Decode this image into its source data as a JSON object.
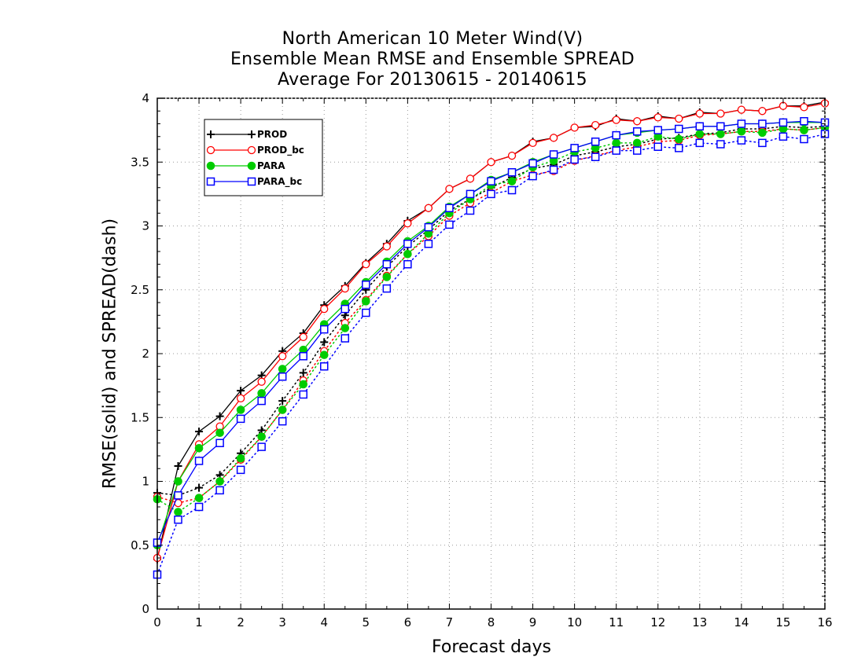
{
  "chart_data": {
    "type": "line",
    "title": [
      "North American 10 Meter Wind(V)",
      "Ensemble Mean RMSE and Ensemble SPREAD",
      "Average For 20130615 - 20140615"
    ],
    "xlabel": "Forecast days",
    "ylabel": "RMSE(solid) and SPREAD(dash)",
    "xlim": [
      0,
      16
    ],
    "ylim": [
      0,
      4
    ],
    "xticks": [
      0,
      1,
      2,
      3,
      4,
      5,
      6,
      7,
      8,
      9,
      10,
      11,
      12,
      13,
      14,
      15,
      16
    ],
    "yticks": [
      0,
      0.5,
      1,
      1.5,
      2,
      2.5,
      3,
      3.5,
      4
    ],
    "ytick_labels": [
      "0",
      "0.5",
      "1",
      "1.5",
      "2",
      "2.5",
      "3",
      "3.5",
      "4"
    ],
    "grid": true,
    "legend_position": "top-left",
    "x": [
      0,
      0.5,
      1,
      1.5,
      2,
      2.5,
      3,
      3.5,
      4,
      4.5,
      5,
      5.5,
      6,
      6.5,
      7,
      7.5,
      8,
      8.5,
      9,
      9.5,
      10,
      10.5,
      11,
      11.5,
      12,
      12.5,
      13,
      13.5,
      14,
      14.5,
      15,
      15.5,
      16
    ],
    "series": [
      {
        "name": "PROD",
        "color": "#000000",
        "marker": "plus",
        "rmse": [
          0.39,
          1.12,
          1.39,
          1.51,
          1.71,
          1.83,
          2.02,
          2.16,
          2.38,
          2.53,
          2.71,
          2.86,
          3.04,
          3.14,
          3.29,
          3.37,
          3.5,
          3.55,
          3.66,
          3.69,
          3.77,
          3.78,
          3.84,
          3.82,
          3.86,
          3.84,
          3.89,
          3.88,
          3.91,
          3.9,
          3.94,
          3.94,
          3.97
        ],
        "spread": [
          0.91,
          0.89,
          0.95,
          1.05,
          1.22,
          1.4,
          1.63,
          1.85,
          2.09,
          2.3,
          2.5,
          2.68,
          2.84,
          2.97,
          3.12,
          3.21,
          3.3,
          3.38,
          3.45,
          3.48,
          3.55,
          3.58,
          3.62,
          3.64,
          3.68,
          3.69,
          3.72,
          3.73,
          3.76,
          3.76,
          3.78,
          3.77,
          3.78
        ]
      },
      {
        "name": "PROD_bc",
        "color": "#ff0000",
        "marker": "open-circle",
        "rmse": [
          0.4,
          1.0,
          1.29,
          1.43,
          1.65,
          1.78,
          1.98,
          2.13,
          2.35,
          2.51,
          2.7,
          2.84,
          3.02,
          3.14,
          3.29,
          3.37,
          3.5,
          3.55,
          3.65,
          3.69,
          3.77,
          3.79,
          3.83,
          3.82,
          3.85,
          3.84,
          3.88,
          3.88,
          3.91,
          3.9,
          3.94,
          3.93,
          3.96
        ],
        "spread": [
          0.88,
          0.83,
          0.87,
          1.0,
          1.17,
          1.35,
          1.56,
          1.79,
          2.02,
          2.24,
          2.42,
          2.61,
          2.78,
          2.92,
          3.08,
          3.18,
          3.26,
          3.35,
          3.4,
          3.43,
          3.51,
          3.55,
          3.59,
          3.62,
          3.66,
          3.67,
          3.71,
          3.72,
          3.74,
          3.74,
          3.76,
          3.75,
          3.77
        ]
      },
      {
        "name": "PARA",
        "color": "#00cc00",
        "marker": "filled-circle",
        "rmse": [
          0.5,
          1.0,
          1.26,
          1.38,
          1.56,
          1.69,
          1.88,
          2.03,
          2.23,
          2.39,
          2.56,
          2.72,
          2.88,
          3.0,
          3.15,
          3.25,
          3.36,
          3.42,
          3.5,
          3.56,
          3.61,
          3.66,
          3.71,
          3.73,
          3.75,
          3.76,
          3.78,
          3.78,
          3.8,
          3.8,
          3.81,
          3.81,
          3.81
        ],
        "spread": [
          0.86,
          0.76,
          0.87,
          1.0,
          1.18,
          1.35,
          1.56,
          1.76,
          1.99,
          2.2,
          2.41,
          2.6,
          2.78,
          2.94,
          3.1,
          3.21,
          3.32,
          3.35,
          3.46,
          3.51,
          3.58,
          3.61,
          3.65,
          3.65,
          3.7,
          3.68,
          3.72,
          3.72,
          3.74,
          3.73,
          3.76,
          3.75,
          3.77
        ]
      },
      {
        "name": "PARA_bc",
        "color": "#0000ff",
        "marker": "open-square",
        "rmse": [
          0.52,
          0.89,
          1.16,
          1.3,
          1.49,
          1.63,
          1.82,
          1.98,
          2.19,
          2.35,
          2.54,
          2.7,
          2.86,
          2.99,
          3.14,
          3.25,
          3.35,
          3.42,
          3.49,
          3.56,
          3.61,
          3.66,
          3.71,
          3.74,
          3.75,
          3.76,
          3.78,
          3.78,
          3.8,
          3.8,
          3.81,
          3.82,
          3.81
        ],
        "spread": [
          0.27,
          0.7,
          0.8,
          0.93,
          1.09,
          1.27,
          1.47,
          1.68,
          1.9,
          2.12,
          2.32,
          2.51,
          2.7,
          2.86,
          3.01,
          3.12,
          3.25,
          3.28,
          3.39,
          3.44,
          3.52,
          3.54,
          3.59,
          3.59,
          3.62,
          3.61,
          3.65,
          3.64,
          3.67,
          3.65,
          3.7,
          3.68,
          3.72
        ]
      }
    ]
  }
}
